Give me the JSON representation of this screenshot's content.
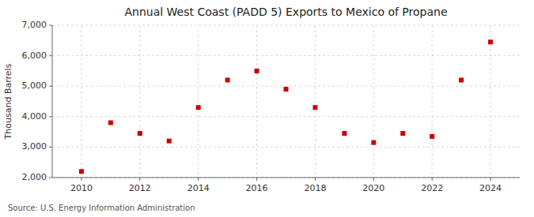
{
  "chart_data": {
    "type": "scatter",
    "title": "Annual West Coast (PADD 5) Exports to Mexico of Propane",
    "y_label": "Thousand Barrels",
    "annotations": [
      "Source: U.S. Energy Information Administration"
    ],
    "x": [
      2010,
      2011,
      2012,
      2013,
      2014,
      2015,
      2016,
      2017,
      2018,
      2019,
      2020,
      2021,
      2022,
      2023,
      2024
    ],
    "values": [
      2200,
      3800,
      3450,
      3200,
      4300,
      5200,
      5500,
      4900,
      4300,
      3450,
      3150,
      3450,
      3350,
      5200,
      6450
    ],
    "color": "#cc0000",
    "marker": "square",
    "xlim": [
      2009,
      2025
    ],
    "xticks": [
      2010,
      2012,
      2014,
      2016,
      2018,
      2020,
      2022,
      2024
    ],
    "ylim": [
      2000,
      7000
    ],
    "yticks": [
      {
        "value": 2000,
        "label": "2,000"
      },
      {
        "value": 3000,
        "label": "3,000"
      },
      {
        "value": 4000,
        "label": "4,000"
      },
      {
        "value": 5000,
        "label": "5,000"
      },
      {
        "value": 6000,
        "label": "6,000"
      },
      {
        "value": 7000,
        "label": "7,000"
      }
    ],
    "grid": true
  }
}
